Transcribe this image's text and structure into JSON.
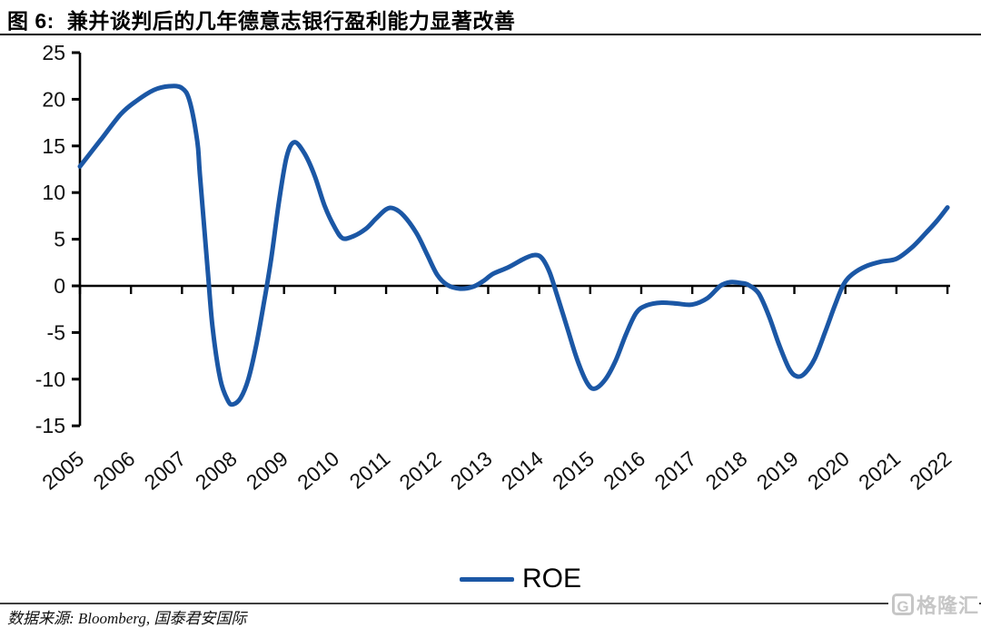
{
  "header": {
    "figure_label": "图 6:",
    "title": "兼并谈判后的几年德意志银行盈利能力显著改善"
  },
  "legend": {
    "label": "ROE"
  },
  "footer": {
    "source": "数据来源: Bloomberg, 国泰君安国际"
  },
  "watermark": {
    "logo_letter": "G",
    "text": "格隆汇"
  },
  "colors": {
    "line": "#1b57a5",
    "axis": "#000000",
    "tick_text": "#111111",
    "watermark": "#c6c6c6"
  },
  "chart_data": {
    "type": "line",
    "title": "兼并谈判后的几年德意志银行盈利能力显著改善",
    "xlabel": "",
    "ylabel": "",
    "categories": [
      "2005",
      "2006",
      "2007",
      "2008",
      "2009",
      "2010",
      "2011",
      "2012",
      "2013",
      "2014",
      "2015",
      "2016",
      "2017",
      "2018",
      "2019",
      "2020",
      "2021",
      "2022"
    ],
    "series": [
      {
        "name": "ROE",
        "values": [
          12.8,
          19.8,
          21.2,
          -12.7,
          15.2,
          5.5,
          8.2,
          0.2,
          1.3,
          3.3,
          -11.0,
          -2.0,
          -1.9,
          0.3,
          -9.7,
          0.3,
          2.9,
          8.4
        ]
      }
    ],
    "ylim": [
      -15,
      25
    ],
    "y_ticks": [
      25,
      20,
      15,
      10,
      5,
      0,
      -5,
      -10,
      -15
    ],
    "grid": false,
    "legend_position": "bottom",
    "annotations": {
      "peak_2007": 21.4,
      "trough_2008": -12.7,
      "peak_2009": 15.4,
      "trough_2015": -11.0,
      "trough_2019": -9.7
    },
    "curve_samples": [
      [
        2005.0,
        12.8
      ],
      [
        2005.4,
        15.6
      ],
      [
        2005.8,
        18.4
      ],
      [
        2006.1,
        19.8
      ],
      [
        2006.45,
        21.0
      ],
      [
        2006.75,
        21.4
      ],
      [
        2007.0,
        21.2
      ],
      [
        2007.15,
        19.8
      ],
      [
        2007.3,
        15.5
      ],
      [
        2007.35,
        12.0
      ],
      [
        2007.5,
        2.0
      ],
      [
        2007.6,
        -4.5
      ],
      [
        2007.75,
        -10.0
      ],
      [
        2007.9,
        -12.3
      ],
      [
        2008.0,
        -12.7
      ],
      [
        2008.15,
        -12.0
      ],
      [
        2008.3,
        -10.0
      ],
      [
        2008.45,
        -6.5
      ],
      [
        2008.6,
        -2.0
      ],
      [
        2008.75,
        3.0
      ],
      [
        2008.9,
        9.0
      ],
      [
        2009.05,
        13.8
      ],
      [
        2009.2,
        15.4
      ],
      [
        2009.4,
        14.2
      ],
      [
        2009.6,
        11.8
      ],
      [
        2009.8,
        8.5
      ],
      [
        2010.0,
        6.2
      ],
      [
        2010.15,
        5.1
      ],
      [
        2010.35,
        5.3
      ],
      [
        2010.6,
        6.1
      ],
      [
        2010.8,
        7.2
      ],
      [
        2011.0,
        8.2
      ],
      [
        2011.15,
        8.3
      ],
      [
        2011.35,
        7.5
      ],
      [
        2011.6,
        5.6
      ],
      [
        2011.8,
        3.4
      ],
      [
        2012.0,
        1.2
      ],
      [
        2012.2,
        0.1
      ],
      [
        2012.45,
        -0.3
      ],
      [
        2012.7,
        -0.1
      ],
      [
        2012.9,
        0.5
      ],
      [
        2013.1,
        1.3
      ],
      [
        2013.4,
        2.0
      ],
      [
        2013.7,
        2.9
      ],
      [
        2013.9,
        3.3
      ],
      [
        2014.05,
        3.0
      ],
      [
        2014.2,
        1.5
      ],
      [
        2014.35,
        -1.0
      ],
      [
        2014.55,
        -4.5
      ],
      [
        2014.75,
        -8.0
      ],
      [
        2014.95,
        -10.5
      ],
      [
        2015.1,
        -11.0
      ],
      [
        2015.3,
        -10.0
      ],
      [
        2015.5,
        -8.0
      ],
      [
        2015.7,
        -5.2
      ],
      [
        2015.9,
        -2.9
      ],
      [
        2016.1,
        -2.1
      ],
      [
        2016.4,
        -1.8
      ],
      [
        2016.7,
        -1.9
      ],
      [
        2017.0,
        -2.0
      ],
      [
        2017.3,
        -1.3
      ],
      [
        2017.55,
        0.0
      ],
      [
        2017.75,
        0.4
      ],
      [
        2017.95,
        0.3
      ],
      [
        2018.1,
        0.1
      ],
      [
        2018.3,
        -0.8
      ],
      [
        2018.5,
        -3.2
      ],
      [
        2018.7,
        -6.3
      ],
      [
        2018.9,
        -8.9
      ],
      [
        2019.05,
        -9.7
      ],
      [
        2019.2,
        -9.4
      ],
      [
        2019.4,
        -7.8
      ],
      [
        2019.6,
        -5.0
      ],
      [
        2019.8,
        -2.0
      ],
      [
        2019.97,
        0.2
      ],
      [
        2020.15,
        1.3
      ],
      [
        2020.4,
        2.1
      ],
      [
        2020.7,
        2.6
      ],
      [
        2021.0,
        2.9
      ],
      [
        2021.3,
        4.1
      ],
      [
        2021.6,
        5.8
      ],
      [
        2021.8,
        7.0
      ],
      [
        2022.0,
        8.4
      ]
    ]
  }
}
